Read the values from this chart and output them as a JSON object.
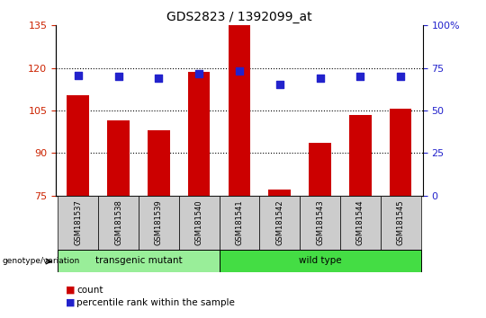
{
  "title": "GDS2823 / 1392099_at",
  "samples": [
    "GSM181537",
    "GSM181538",
    "GSM181539",
    "GSM181540",
    "GSM181541",
    "GSM181542",
    "GSM181543",
    "GSM181544",
    "GSM181545"
  ],
  "counts": [
    110.5,
    101.5,
    98.0,
    118.5,
    135.5,
    77.0,
    93.5,
    103.5,
    105.5
  ],
  "percentiles": [
    70.5,
    70.0,
    69.0,
    71.5,
    73.0,
    65.5,
    69.0,
    70.0,
    70.0
  ],
  "bar_color": "#cc0000",
  "dot_color": "#2222cc",
  "ylim_left": [
    75,
    135
  ],
  "ylim_right": [
    0,
    100
  ],
  "yticks_left": [
    75,
    90,
    105,
    120,
    135
  ],
  "yticks_right": [
    0,
    25,
    50,
    75,
    100
  ],
  "ytick_labels_right": [
    "0",
    "25",
    "50",
    "75",
    "100%"
  ],
  "hlines": [
    90,
    105,
    120
  ],
  "transgenic_label": "transgenic mutant",
  "wildtype_label": "wild type",
  "genotype_label": "genotype/variation",
  "legend_count": "count",
  "legend_percentile": "percentile rank within the sample",
  "group_color_transgenic": "#99ee99",
  "group_color_wildtype": "#44dd44",
  "tick_color_left": "#cc2200",
  "tick_color_right": "#2222cc",
  "bar_width": 0.55,
  "dot_size": 40,
  "n_transgenic": 4,
  "n_wildtype": 5
}
